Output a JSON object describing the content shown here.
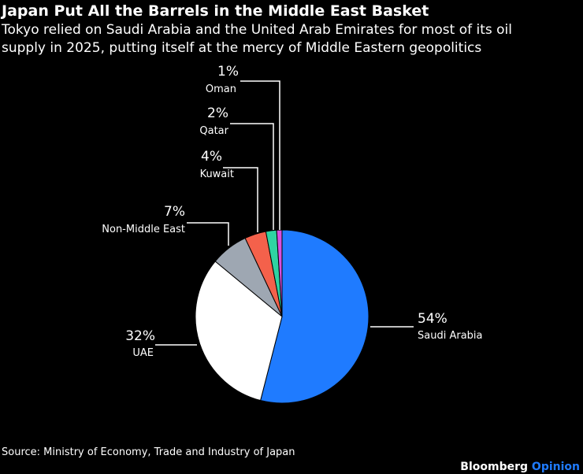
{
  "chart_data": {
    "type": "pie",
    "title": "Japan Put All the Barrels in the Middle East Basket",
    "subtitle": [
      "Tokyo relied on Saudi Arabia and the United Arab Emirates for most of its oil",
      "supply in 2025, putting itself at the mercy of Middle Eastern geopolitics"
    ],
    "categories": [
      "Saudi Arabia",
      "UAE",
      "Non-Middle East",
      "Kuwait",
      "Qatar",
      "Oman"
    ],
    "values": [
      54,
      32,
      7,
      4,
      2,
      1
    ],
    "value_labels": [
      "54%",
      "32%",
      "7%",
      "4%",
      "2%",
      "1%"
    ],
    "colors": [
      "#1f7bff",
      "#ffffff",
      "#9ea7b2",
      "#f4614b",
      "#2fd3a2",
      "#d84fe0"
    ],
    "source": "Source: Ministry of Economy, Trade and Industry of Japan",
    "brand": [
      "Bloomberg",
      "Opinion"
    ]
  }
}
